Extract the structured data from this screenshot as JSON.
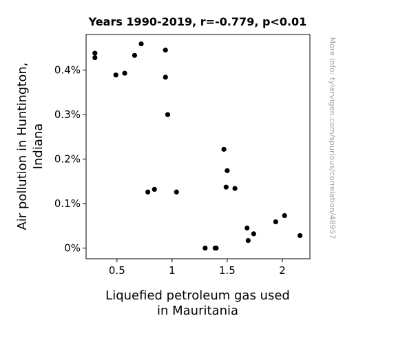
{
  "chart_data": {
    "type": "scatter",
    "title": "Years 1990-2019, r=-0.779, p<0.01",
    "xlabel": [
      "Liquefied petroleum gas used",
      "in Mauritania"
    ],
    "ylabel": [
      "Air pollution in Huntington,",
      "Indiana"
    ],
    "watermark": "More info: tylervigen.com/spurious/correlation/48957",
    "xlim": [
      0.22,
      2.25
    ],
    "ylim": [
      -0.00024,
      0.0048
    ],
    "x_ticks": [
      {
        "value": 0.5,
        "label": "0.5"
      },
      {
        "value": 1.0,
        "label": "1"
      },
      {
        "value": 1.5,
        "label": "1.5"
      },
      {
        "value": 2.0,
        "label": "2"
      }
    ],
    "y_ticks": [
      {
        "value": 0.0,
        "label": "0%"
      },
      {
        "value": 0.001,
        "label": "0.1%"
      },
      {
        "value": 0.002,
        "label": "0.2%"
      },
      {
        "value": 0.003,
        "label": "0.3%"
      },
      {
        "value": 0.004,
        "label": "0.4%"
      }
    ],
    "point_color": "#000000",
    "points": [
      {
        "x": 0.3,
        "y": 0.00438
      },
      {
        "x": 0.3,
        "y": 0.00428
      },
      {
        "x": 0.49,
        "y": 0.00389
      },
      {
        "x": 0.57,
        "y": 0.00393
      },
      {
        "x": 0.66,
        "y": 0.00433
      },
      {
        "x": 0.72,
        "y": 0.00459
      },
      {
        "x": 0.94,
        "y": 0.00445
      },
      {
        "x": 0.94,
        "y": 0.00384
      },
      {
        "x": 0.96,
        "y": 0.003
      },
      {
        "x": 0.78,
        "y": 0.00126
      },
      {
        "x": 0.84,
        "y": 0.00132
      },
      {
        "x": 1.04,
        "y": 0.00126
      },
      {
        "x": 1.3,
        "y": 0.0
      },
      {
        "x": 1.39,
        "y": 0.0
      },
      {
        "x": 1.4,
        "y": 0.0
      },
      {
        "x": 1.47,
        "y": 0.00222
      },
      {
        "x": 1.5,
        "y": 0.00174
      },
      {
        "x": 1.49,
        "y": 0.00137
      },
      {
        "x": 1.57,
        "y": 0.00134
      },
      {
        "x": 1.68,
        "y": 0.00045
      },
      {
        "x": 1.69,
        "y": 0.00017
      },
      {
        "x": 1.74,
        "y": 0.00032
      },
      {
        "x": 1.94,
        "y": 0.00059
      },
      {
        "x": 2.02,
        "y": 0.00073
      },
      {
        "x": 2.16,
        "y": 0.00028
      }
    ]
  }
}
